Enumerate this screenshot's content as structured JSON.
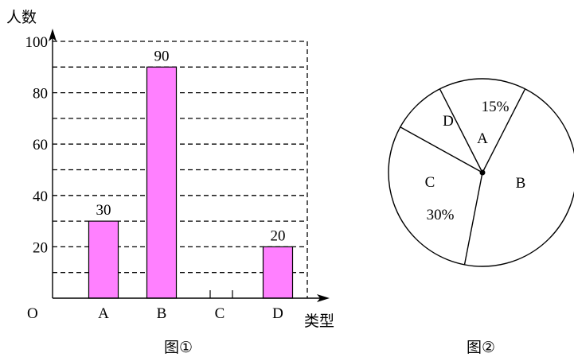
{
  "figure1": {
    "caption": "图①",
    "ylabel": "人数",
    "xlabel": "类型",
    "origin_label": "O",
    "chart_data": {
      "type": "bar",
      "categories": [
        "A",
        "B",
        "C",
        "D"
      ],
      "values": [
        30,
        90,
        null,
        20
      ],
      "data_labels": [
        "30",
        "90",
        "",
        "20"
      ],
      "ylim": [
        0,
        100
      ],
      "yticks": [
        20,
        40,
        60,
        80,
        100
      ],
      "gridlines_every": 10,
      "grid": true,
      "grid_style": "dashed",
      "bar_color": "#ff80ff",
      "bar_edge_color": "#000000"
    }
  },
  "figure2": {
    "caption": "图②",
    "chart_data": {
      "type": "pie",
      "slices": [
        {
          "label": "A",
          "percent": 15,
          "percent_label": "15%"
        },
        {
          "label": "B",
          "percent": null,
          "percent_label": ""
        },
        {
          "label": "C",
          "percent": 30,
          "percent_label": "30%"
        },
        {
          "label": "D",
          "percent": null,
          "percent_label": ""
        }
      ],
      "fill_color": "#ffffff",
      "edge_color": "#000000"
    }
  }
}
